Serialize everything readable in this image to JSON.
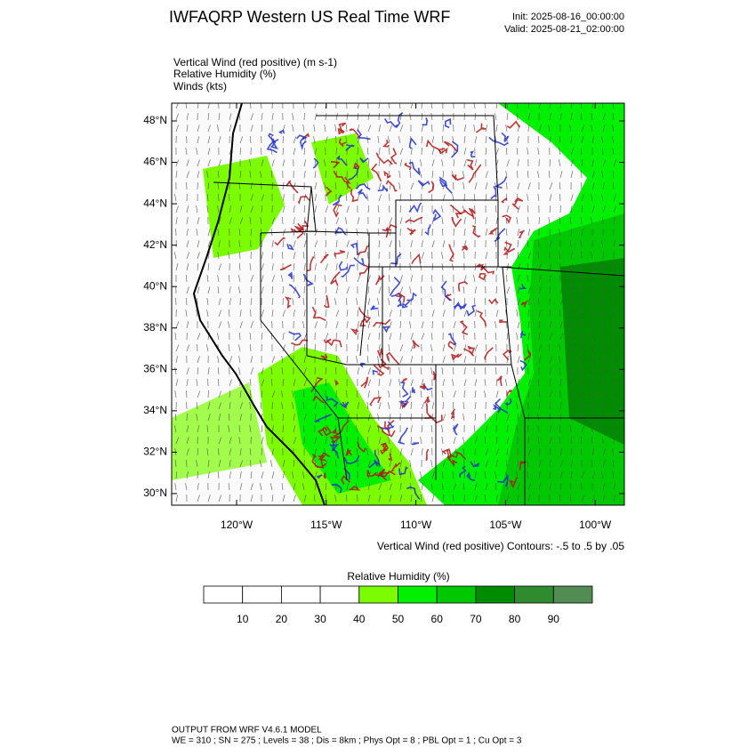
{
  "header": {
    "title": "IWFAQRP Western US Real Time WRF",
    "init": "Init: 2025-08-16_00:00:00",
    "valid": "Valid: 2025-08-21_02:00:00"
  },
  "fields": [
    "Vertical Wind (red positive)   (m s-1)",
    "Relative Humidity   (%)",
    "Winds   (kts)"
  ],
  "map": {
    "lat_labels": [
      "48°N",
      "46°N",
      "44°N",
      "42°N",
      "40°N",
      "38°N",
      "36°N",
      "34°N",
      "32°N",
      "30°N"
    ],
    "lon_labels": [
      "120°W",
      "115°W",
      "110°W",
      "105°W",
      "100°W"
    ],
    "contour_note": "Vertical Wind (red positive) Contours: -.5 to .5 by .05"
  },
  "colorbar": {
    "title": "Relative Humidity  (%)",
    "labels": [
      10,
      20,
      30,
      40,
      50,
      60,
      70,
      80,
      90
    ],
    "colors": [
      "#ffffff",
      "#ffffff",
      "#ffffff",
      "#ffffff",
      "#7cfc00",
      "#00f000",
      "#00c800",
      "#008c00",
      "#2e8b2e",
      "#528c52"
    ]
  },
  "footer": {
    "line1": "OUTPUT FROM WRF V4.6.1 MODEL",
    "line2": "WE = 310 ; SN = 275 ; Levels = 38 ; Dis = 8km ; Phys Opt = 8 ; PBL Opt = 1 ; Cu Opt = 3"
  }
}
